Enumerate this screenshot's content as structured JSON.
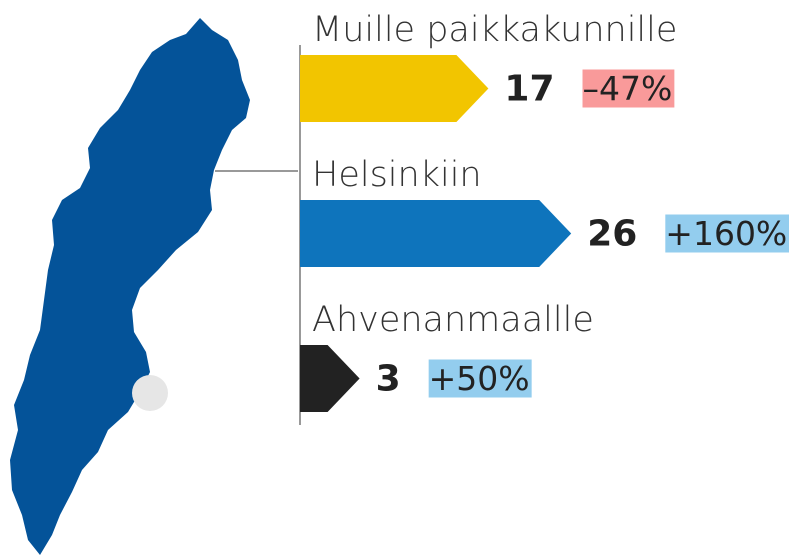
{
  "chart_data": {
    "type": "arrow-bar",
    "categories": [
      "Muille paikkakunnille",
      "Helsinkiin",
      "Ahvenanmaallle"
    ],
    "values": [
      17,
      26,
      3
    ],
    "colors": [
      "#f2c500",
      "#0e74bc",
      "#222222"
    ],
    "changes": [
      -47,
      160,
      50
    ],
    "change_labels": [
      "–47%",
      "+160%",
      "+50%"
    ],
    "negative_color": "#f99a9a",
    "positive_color": "#93cdee"
  }
}
